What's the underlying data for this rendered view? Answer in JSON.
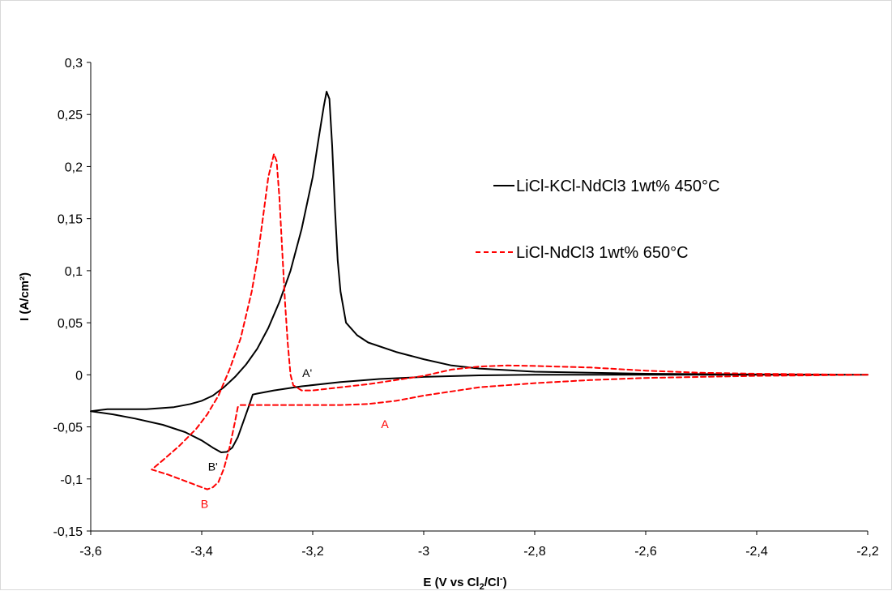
{
  "chart_data": {
    "type": "line",
    "title": "",
    "xlabel": "E (V vs Cl2/Cl-)",
    "xlabel_parts": {
      "main": "E (V vs Cl",
      "sub": "2",
      "mid": "/Cl",
      "sup": "-",
      "end": ")"
    },
    "ylabel": "I (A/cm²)",
    "xlim": [
      -3.6,
      -2.2
    ],
    "ylim": [
      -0.15,
      0.3
    ],
    "x_ticks": [
      -3.6,
      -3.4,
      -3.2,
      -3.0,
      -2.8,
      -2.6,
      -2.4,
      -2.2
    ],
    "x_tick_labels": [
      "-3,6",
      "-3,4",
      "-3,2",
      "-3",
      "-2,8",
      "-2,6",
      "-2,4",
      "-2,2"
    ],
    "y_ticks": [
      -0.15,
      -0.1,
      -0.05,
      0,
      0.05,
      0.1,
      0.15,
      0.2,
      0.25,
      0.3
    ],
    "y_tick_labels": [
      "-0,15",
      "-0,1",
      "-0,05",
      "0",
      "0,05",
      "0,1",
      "0,15",
      "0,2",
      "0,25",
      "0,3"
    ],
    "grid": false,
    "legend_position": "right",
    "series": [
      {
        "name": "LiCl-KCl-NdCl3 1wt% 450°C",
        "color": "#000000",
        "style": "solid",
        "points": [
          [
            -2.2,
            0.0
          ],
          [
            -2.4,
            0.0
          ],
          [
            -2.6,
            0.0
          ],
          [
            -2.8,
            0.0
          ],
          [
            -2.9,
            -0.0005
          ],
          [
            -3.0,
            -0.002
          ],
          [
            -3.08,
            -0.004
          ],
          [
            -3.15,
            -0.007
          ],
          [
            -3.22,
            -0.011
          ],
          [
            -3.27,
            -0.015
          ],
          [
            -3.3,
            -0.018
          ],
          [
            -3.308,
            -0.019
          ],
          [
            -3.315,
            -0.03
          ],
          [
            -3.325,
            -0.045
          ],
          [
            -3.335,
            -0.06
          ],
          [
            -3.345,
            -0.07
          ],
          [
            -3.355,
            -0.074
          ],
          [
            -3.365,
            -0.0745
          ],
          [
            -3.38,
            -0.07
          ],
          [
            -3.4,
            -0.063
          ],
          [
            -3.43,
            -0.055
          ],
          [
            -3.47,
            -0.048
          ],
          [
            -3.52,
            -0.042
          ],
          [
            -3.56,
            -0.038
          ],
          [
            -3.6,
            -0.035
          ],
          [
            -3.57,
            -0.033
          ],
          [
            -3.55,
            -0.033
          ],
          [
            -3.5,
            -0.033
          ],
          [
            -3.45,
            -0.031
          ],
          [
            -3.42,
            -0.028
          ],
          [
            -3.4,
            -0.025
          ],
          [
            -3.38,
            -0.02
          ],
          [
            -3.36,
            -0.012
          ],
          [
            -3.34,
            -0.002
          ],
          [
            -3.32,
            0.01
          ],
          [
            -3.3,
            0.025
          ],
          [
            -3.28,
            0.045
          ],
          [
            -3.26,
            0.07
          ],
          [
            -3.24,
            0.1
          ],
          [
            -3.22,
            0.14
          ],
          [
            -3.2,
            0.19
          ],
          [
            -3.19,
            0.225
          ],
          [
            -3.18,
            0.258
          ],
          [
            -3.175,
            0.272
          ],
          [
            -3.17,
            0.265
          ],
          [
            -3.165,
            0.22
          ],
          [
            -3.16,
            0.16
          ],
          [
            -3.155,
            0.11
          ],
          [
            -3.15,
            0.08
          ],
          [
            -3.145,
            0.065
          ],
          [
            -3.14,
            0.05
          ],
          [
            -3.12,
            0.038
          ],
          [
            -3.1,
            0.031
          ],
          [
            -3.05,
            0.022
          ],
          [
            -3.0,
            0.015
          ],
          [
            -2.95,
            0.009
          ],
          [
            -2.9,
            0.006
          ],
          [
            -2.8,
            0.003
          ],
          [
            -2.6,
            0.001
          ],
          [
            -2.4,
            0.0003
          ],
          [
            -2.2,
            0.0
          ]
        ]
      },
      {
        "name": "LiCl-NdCl3 1wt% 650°C",
        "color": "#ff0000",
        "style": "dashed",
        "points": [
          [
            -2.2,
            0.0
          ],
          [
            -2.3,
            -0.0005
          ],
          [
            -2.4,
            -0.001
          ],
          [
            -2.5,
            -0.002
          ],
          [
            -2.6,
            -0.003
          ],
          [
            -2.7,
            -0.005
          ],
          [
            -2.8,
            -0.008
          ],
          [
            -2.9,
            -0.012
          ],
          [
            -3.0,
            -0.02
          ],
          [
            -3.05,
            -0.025
          ],
          [
            -3.1,
            -0.028
          ],
          [
            -3.15,
            -0.029
          ],
          [
            -3.2,
            -0.029
          ],
          [
            -3.25,
            -0.029
          ],
          [
            -3.3,
            -0.029
          ],
          [
            -3.33,
            -0.029
          ],
          [
            -3.335,
            -0.031
          ],
          [
            -3.34,
            -0.045
          ],
          [
            -3.35,
            -0.07
          ],
          [
            -3.36,
            -0.09
          ],
          [
            -3.37,
            -0.103
          ],
          [
            -3.38,
            -0.108
          ],
          [
            -3.39,
            -0.11
          ],
          [
            -3.4,
            -0.108
          ],
          [
            -3.43,
            -0.102
          ],
          [
            -3.46,
            -0.096
          ],
          [
            -3.49,
            -0.091
          ],
          [
            -3.47,
            -0.082
          ],
          [
            -3.44,
            -0.068
          ],
          [
            -3.41,
            -0.052
          ],
          [
            -3.39,
            -0.038
          ],
          [
            -3.37,
            -0.02
          ],
          [
            -3.35,
            0.005
          ],
          [
            -3.33,
            0.035
          ],
          [
            -3.31,
            0.08
          ],
          [
            -3.3,
            0.11
          ],
          [
            -3.29,
            0.15
          ],
          [
            -3.28,
            0.19
          ],
          [
            -3.27,
            0.212
          ],
          [
            -3.265,
            0.205
          ],
          [
            -3.26,
            0.17
          ],
          [
            -3.255,
            0.12
          ],
          [
            -3.25,
            0.07
          ],
          [
            -3.245,
            0.03
          ],
          [
            -3.24,
            0.0
          ],
          [
            -3.235,
            -0.01
          ],
          [
            -3.22,
            -0.015
          ],
          [
            -3.2,
            -0.015
          ],
          [
            -3.15,
            -0.012
          ],
          [
            -3.1,
            -0.009
          ],
          [
            -3.05,
            -0.005
          ],
          [
            -3.0,
            -0.001
          ],
          [
            -2.95,
            0.005
          ],
          [
            -2.9,
            0.008
          ],
          [
            -2.85,
            0.009
          ],
          [
            -2.8,
            0.0085
          ],
          [
            -2.7,
            0.007
          ],
          [
            -2.6,
            0.004
          ],
          [
            -2.5,
            0.002
          ],
          [
            -2.4,
            0.001
          ],
          [
            -2.3,
            0.0005
          ],
          [
            -2.2,
            0.0
          ]
        ]
      }
    ],
    "annotations": [
      {
        "text": "A'",
        "x": -3.21,
        "y": -0.002,
        "color": "#000000"
      },
      {
        "text": "A",
        "x": -3.07,
        "y": -0.051,
        "color": "#ff0000"
      },
      {
        "text": "B'",
        "x": -3.38,
        "y": -0.092,
        "color": "#000000"
      },
      {
        "text": "B",
        "x": -3.395,
        "y": -0.128,
        "color": "#ff0000"
      }
    ]
  }
}
